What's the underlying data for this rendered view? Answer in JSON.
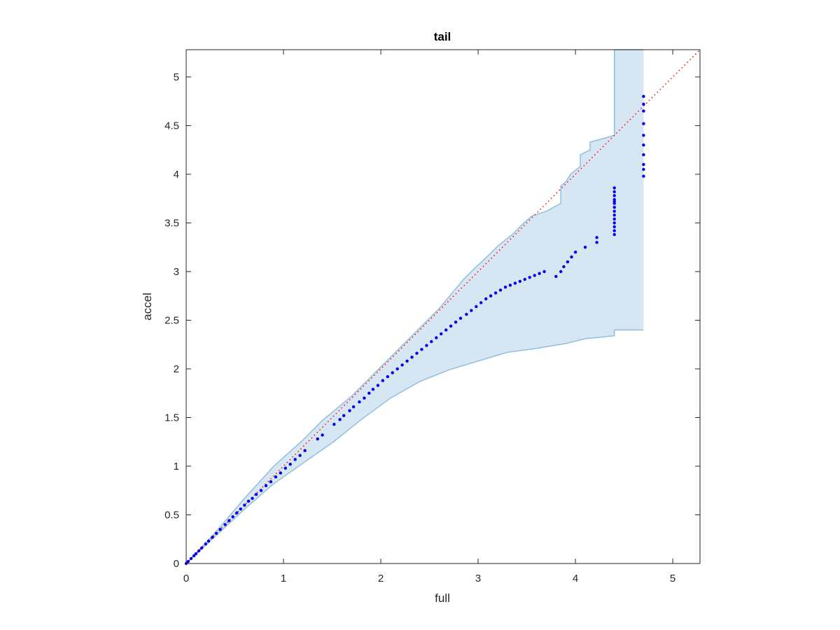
{
  "chart_data": {
    "type": "scatter",
    "title": "tail",
    "xlabel": "full",
    "ylabel": "accel",
    "xlim": [
      0,
      5.28
    ],
    "ylim": [
      0,
      5.28
    ],
    "xticks": [
      0,
      1,
      2,
      3,
      4,
      5
    ],
    "xtick_labels": [
      "0",
      "1",
      "2",
      "3",
      "4",
      "5"
    ],
    "yticks": [
      0,
      0.5,
      1,
      1.5,
      2,
      2.5,
      3,
      3.5,
      4,
      4.5,
      5
    ],
    "ytick_labels": [
      "0",
      "0.5",
      "1",
      "1.5",
      "2",
      "2.5",
      "3",
      "3.5",
      "4",
      "4.5",
      "5"
    ],
    "grid": false,
    "colors": {
      "points": "#0000ee",
      "reference_line": "#ff0000",
      "band_fill": "#d6e6f2",
      "band_edge": "#8fbfdf"
    },
    "reference_line": {
      "style": "dotted",
      "from": [
        0,
        0
      ],
      "to": [
        5.28,
        5.28
      ]
    },
    "band_upper": [
      [
        0,
        0
      ],
      [
        0.3,
        0.32
      ],
      [
        0.6,
        0.67
      ],
      [
        0.9,
        1.0
      ],
      [
        1.2,
        1.27
      ],
      [
        1.4,
        1.47
      ],
      [
        1.7,
        1.72
      ],
      [
        2.0,
        2.02
      ],
      [
        2.3,
        2.32
      ],
      [
        2.6,
        2.62
      ],
      [
        2.75,
        2.8
      ],
      [
        2.85,
        2.92
      ],
      [
        2.95,
        3.02
      ],
      [
        3.1,
        3.16
      ],
      [
        3.2,
        3.26
      ],
      [
        3.35,
        3.38
      ],
      [
        3.45,
        3.48
      ],
      [
        3.55,
        3.57
      ],
      [
        3.7,
        3.62
      ],
      [
        3.85,
        3.7
      ],
      [
        3.85,
        3.88
      ],
      [
        3.9,
        3.92
      ],
      [
        3.95,
        4.0
      ],
      [
        4.05,
        4.08
      ],
      [
        4.05,
        4.2
      ],
      [
        4.15,
        4.25
      ],
      [
        4.15,
        4.33
      ],
      [
        4.4,
        4.4
      ],
      [
        4.4,
        5.28
      ],
      [
        4.7,
        5.28
      ],
      [
        4.7,
        5.28
      ]
    ],
    "band_lower": [
      [
        0,
        0
      ],
      [
        0.3,
        0.28
      ],
      [
        0.6,
        0.56
      ],
      [
        0.9,
        0.82
      ],
      [
        1.2,
        1.03
      ],
      [
        1.5,
        1.24
      ],
      [
        1.8,
        1.48
      ],
      [
        2.1,
        1.7
      ],
      [
        2.4,
        1.87
      ],
      [
        2.7,
        1.99
      ],
      [
        3.0,
        2.08
      ],
      [
        3.3,
        2.17
      ],
      [
        3.6,
        2.21
      ],
      [
        3.9,
        2.26
      ],
      [
        4.1,
        2.31
      ],
      [
        4.4,
        2.34
      ],
      [
        4.4,
        2.4
      ],
      [
        4.7,
        2.4
      ]
    ],
    "series": [
      {
        "x": [
          0.0,
          0.02,
          0.05,
          0.08,
          0.1,
          0.13,
          0.16,
          0.2,
          0.23,
          0.27,
          0.31,
          0.35,
          0.4,
          0.44,
          0.48,
          0.52,
          0.56,
          0.6,
          0.64,
          0.68,
          0.72,
          0.77,
          0.82,
          0.87,
          0.92,
          0.97,
          1.02,
          1.07,
          1.12,
          1.17,
          1.22,
          1.35,
          1.4,
          1.52,
          1.58,
          1.62,
          1.68,
          1.72,
          1.78,
          1.83,
          1.88,
          1.92,
          1.97,
          2.02,
          2.07,
          2.12,
          2.17,
          2.22,
          2.27,
          2.32,
          2.37,
          2.42,
          2.47,
          2.52,
          2.57,
          2.62,
          2.67,
          2.72,
          2.77,
          2.82,
          2.88,
          2.93,
          2.98,
          3.03,
          3.08,
          3.13,
          3.18,
          3.23,
          3.28,
          3.33,
          3.38,
          3.43,
          3.48,
          3.53,
          3.58,
          3.63,
          3.68,
          3.8,
          3.85,
          3.88,
          3.92,
          3.96,
          4.0,
          4.1,
          4.22,
          4.22,
          4.4,
          4.4,
          4.4,
          4.4,
          4.4,
          4.4,
          4.4,
          4.4,
          4.4,
          4.4,
          4.4,
          4.4,
          4.4,
          4.4,
          4.7,
          4.7,
          4.7,
          4.7,
          4.7,
          4.7,
          4.7,
          4.7,
          4.7,
          4.7
        ],
        "values": [
          0.0,
          0.02,
          0.05,
          0.08,
          0.1,
          0.13,
          0.16,
          0.2,
          0.23,
          0.27,
          0.31,
          0.35,
          0.4,
          0.44,
          0.48,
          0.52,
          0.56,
          0.6,
          0.64,
          0.67,
          0.71,
          0.75,
          0.8,
          0.84,
          0.89,
          0.93,
          0.98,
          1.02,
          1.07,
          1.11,
          1.16,
          1.28,
          1.32,
          1.43,
          1.48,
          1.52,
          1.57,
          1.61,
          1.66,
          1.7,
          1.75,
          1.79,
          1.83,
          1.88,
          1.92,
          1.96,
          2.0,
          2.04,
          2.08,
          2.12,
          2.16,
          2.2,
          2.24,
          2.28,
          2.32,
          2.36,
          2.4,
          2.44,
          2.48,
          2.52,
          2.56,
          2.6,
          2.64,
          2.68,
          2.72,
          2.75,
          2.78,
          2.81,
          2.84,
          2.86,
          2.88,
          2.9,
          2.92,
          2.94,
          2.96,
          2.98,
          3.0,
          2.95,
          3.0,
          3.05,
          3.1,
          3.15,
          3.2,
          3.25,
          3.3,
          3.35,
          3.38,
          3.42,
          3.46,
          3.5,
          3.54,
          3.58,
          3.62,
          3.66,
          3.7,
          3.74,
          3.78,
          3.82,
          3.86,
          3.72,
          3.98,
          4.05,
          4.1,
          4.2,
          4.3,
          4.4,
          4.52,
          4.65,
          4.72,
          4.8
        ]
      }
    ]
  }
}
